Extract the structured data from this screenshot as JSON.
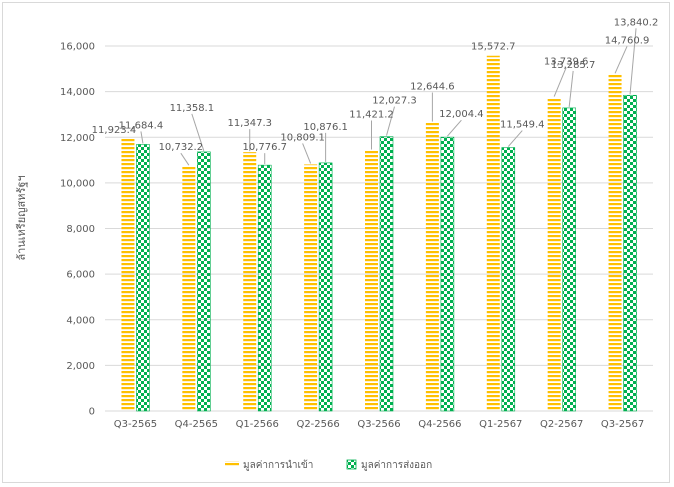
{
  "chart_data": {
    "type": "bar",
    "categories": [
      "Q3-2565",
      "Q4-2565",
      "Q1-2566",
      "Q2-2566",
      "Q3-2566",
      "Q4-2566",
      "Q1-2567",
      "Q2-2567",
      "Q3-2567"
    ],
    "series": [
      {
        "name": "มูลค่าการนำเข้า",
        "values": [
          11923.4,
          10732.2,
          11347.3,
          10809.1,
          11421.2,
          12644.6,
          15572.7,
          13739.6,
          14760.9
        ],
        "labels": [
          "11,923.4",
          "10,732.2",
          "11,347.3",
          "10,809.1",
          "11,421.2",
          "12,644.6",
          "15,572.7",
          "13,739.6",
          "14,760.9"
        ],
        "color": "#ffc000"
      },
      {
        "name": "มูลค่าการส่งออก",
        "values": [
          11684.4,
          11358.1,
          10776.7,
          10876.1,
          12027.3,
          12004.4,
          11549.4,
          13285.7,
          13840.2
        ],
        "labels": [
          "11,684.4",
          "11,358.1",
          "10,776.7",
          "10,876.1",
          "12,027.3",
          "12,004.4",
          "11,549.4",
          "13,285.7",
          "13,840.2"
        ],
        "color": "#00b050"
      }
    ],
    "ylabel": "ล้านเหรียญสหรัฐฯ",
    "ylim": [
      0,
      16000
    ],
    "yticks": [
      "0",
      "2,000",
      "4,000",
      "6,000",
      "8,000",
      "10,000",
      "12,000",
      "14,000",
      "16,000"
    ],
    "grid": true,
    "legend_position": "bottom"
  }
}
